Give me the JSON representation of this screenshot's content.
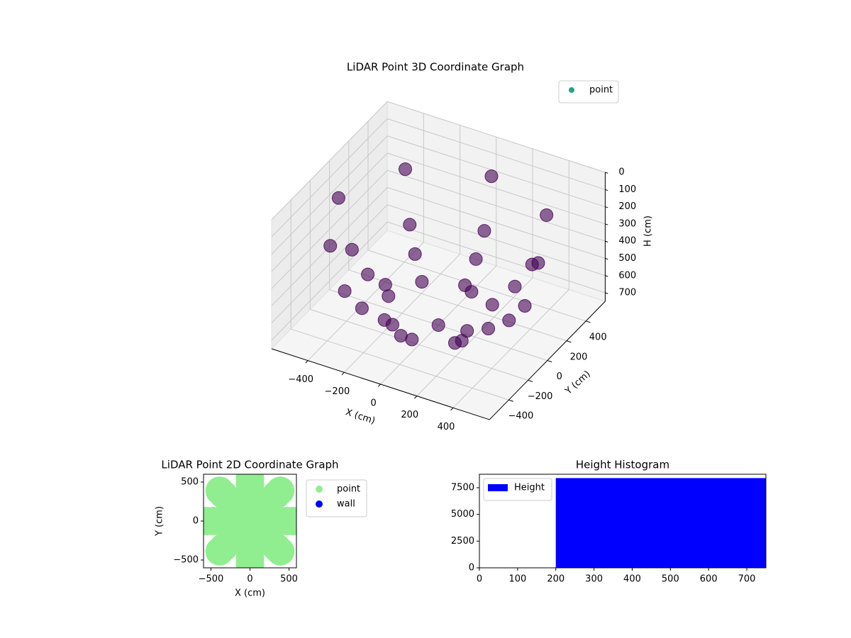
{
  "chart_data": [
    {
      "type": "scatter3d",
      "title": "LiDAR Point 3D Coordinate Graph",
      "xlabel": "X (cm)",
      "ylabel": "Y (cm)",
      "zlabel": "H (cm)",
      "xlim": [
        -600,
        600
      ],
      "ylim": [
        -600,
        600
      ],
      "zlim": [
        0,
        750
      ],
      "z_inverted": true,
      "grid": true,
      "xticks": [
        {
          "value": -400,
          "label": "−400"
        },
        {
          "value": -200,
          "label": "−200"
        },
        0,
        200,
        400
      ],
      "yticks": [
        {
          "value": -400,
          "label": "−400"
        },
        {
          "value": -200,
          "label": "−200"
        },
        0,
        200,
        400
      ],
      "zticks": [
        0,
        100,
        200,
        300,
        400,
        500,
        600,
        700
      ],
      "legend": "upper right",
      "series": [
        {
          "name": "point",
          "color": "#440154",
          "legend_color": "#21a585",
          "x": [
            550,
            389,
            0,
            -389,
            -550,
            -389,
            0,
            389,
            476,
            337,
            0,
            -337,
            -476,
            -337,
            0,
            337,
            389,
            275,
            0,
            -275,
            -389,
            -275,
            0,
            275,
            275,
            194,
            0,
            -194,
            -275,
            -194,
            0,
            194,
            0
          ],
          "y": [
            0,
            389,
            550,
            389,
            0,
            -389,
            -550,
            -389,
            0,
            337,
            476,
            337,
            0,
            -337,
            -476,
            -337,
            0,
            275,
            389,
            275,
            0,
            -275,
            -389,
            -275,
            0,
            194,
            275,
            194,
            0,
            -194,
            -275,
            -194,
            0
          ],
          "z": [
            200,
            200,
            200,
            200,
            200,
            200,
            200,
            200,
            475,
            475,
            475,
            475,
            475,
            475,
            475,
            475,
            589,
            589,
            589,
            589,
            589,
            589,
            589,
            589,
            676,
            676,
            676,
            676,
            676,
            676,
            676,
            676,
            750
          ]
        }
      ]
    },
    {
      "type": "scatter",
      "title": "LiDAR Point 2D Coordinate Graph",
      "xlabel": "X (cm)",
      "ylabel": "Y (cm)",
      "xlim": [
        -595,
        595
      ],
      "ylim": [
        -600,
        600
      ],
      "xticks": [
        {
          "value": -500,
          "label": "−500"
        },
        0,
        500
      ],
      "yticks": [
        {
          "value": -500,
          "label": "−500"
        },
        0,
        500
      ],
      "legend": "outside right",
      "series": [
        {
          "name": "point",
          "color": "#90ee90",
          "x": [
            550,
            389,
            0,
            -389,
            -550,
            -389,
            0,
            389,
            476,
            337,
            0,
            -337,
            -476,
            -337,
            0,
            337,
            389,
            275,
            0,
            -275,
            -389,
            -275,
            0,
            275,
            275,
            194,
            0,
            -194,
            -275,
            -194,
            0,
            194,
            0
          ],
          "y": [
            0,
            389,
            550,
            389,
            0,
            -389,
            -550,
            -389,
            0,
            337,
            476,
            337,
            0,
            -337,
            -476,
            -337,
            0,
            275,
            389,
            275,
            0,
            -275,
            -389,
            -275,
            0,
            194,
            275,
            194,
            0,
            -194,
            -275,
            -194,
            0
          ]
        },
        {
          "name": "wall",
          "color": "#0000ff",
          "x": [],
          "y": []
        }
      ]
    },
    {
      "type": "histogram",
      "title": "Height Histogram",
      "name": "Height",
      "color": "#0000ff",
      "bins": [
        200,
        750
      ],
      "values": [
        8400
      ],
      "xlim": [
        0,
        750
      ],
      "ylim": [
        0,
        8760
      ],
      "xticks": [
        0,
        100,
        200,
        300,
        400,
        500,
        600,
        700
      ],
      "yticks": [
        0,
        2500,
        5000,
        7500
      ],
      "legend": "upper left"
    }
  ]
}
